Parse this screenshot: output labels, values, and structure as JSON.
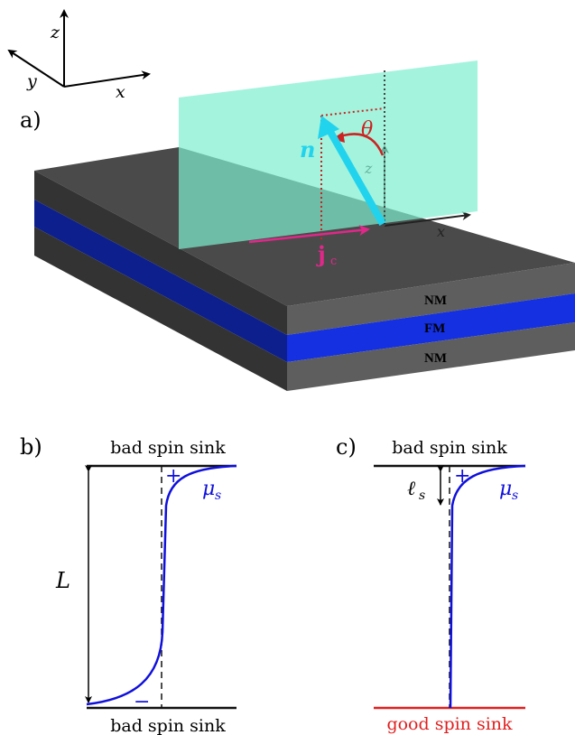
{
  "axes_inset": {
    "x": "x",
    "y": "y",
    "z": "z"
  },
  "panels": {
    "a": "a)",
    "b": "b)",
    "c": "c)"
  },
  "panel_a": {
    "layers": {
      "top": "NM",
      "middle": "FM",
      "bottom": "NM"
    },
    "vector_n": "n",
    "angle": "θ",
    "current": "j",
    "current_sub": "c",
    "local_z": "z",
    "local_x": "x",
    "colors": {
      "plane": "#7df0cf",
      "arrow_n": "#22d3ee",
      "current": "#e0278a",
      "angle": "#cc2222",
      "fm": "#1a33e6",
      "nm": "#5a5a5a"
    }
  },
  "panel_b": {
    "top_sink": "bad spin sink",
    "bottom_sink": "bad spin sink",
    "thickness": "L",
    "mu": "μ",
    "mu_sub": "s",
    "plus": "+",
    "minus": "−"
  },
  "panel_c": {
    "top_sink": "bad spin sink",
    "bottom_sink": "good spin sink",
    "diffusion_length": "ℓ",
    "diffusion_sub": "s",
    "mu": "μ",
    "mu_sub": "s",
    "plus": "+",
    "colors": {
      "good_sink": "#e02020",
      "curve": "#1010dd"
    }
  }
}
